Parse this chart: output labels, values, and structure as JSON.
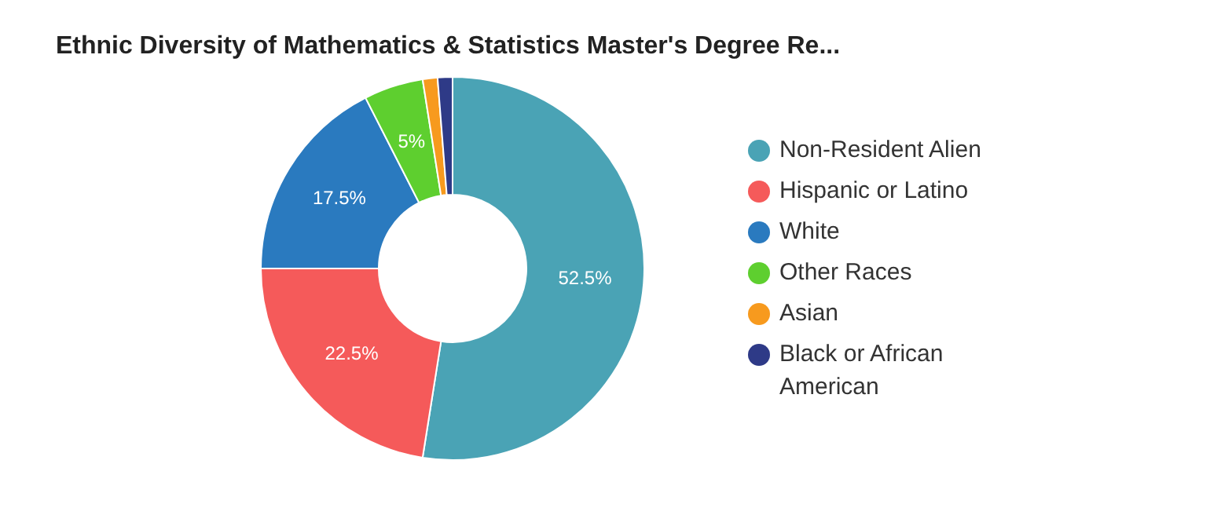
{
  "chart_data": {
    "type": "donut",
    "title": "Ethnic Diversity of Mathematics & Statistics Master's Degree Re...",
    "categories": [
      "Non-Resident Alien",
      "Hispanic or Latino",
      "White",
      "Other Races",
      "Asian",
      "Black or African American"
    ],
    "values": [
      52.5,
      22.5,
      17.5,
      5,
      1.25,
      1.25
    ],
    "colors": [
      "#4aa3b5",
      "#f55a5a",
      "#2a7abf",
      "#5ecf2f",
      "#f79a1e",
      "#2e3a87"
    ],
    "value_labels": [
      "52.5%",
      "22.5%",
      "17.5%",
      "5%",
      null,
      null
    ],
    "legend": "right"
  }
}
